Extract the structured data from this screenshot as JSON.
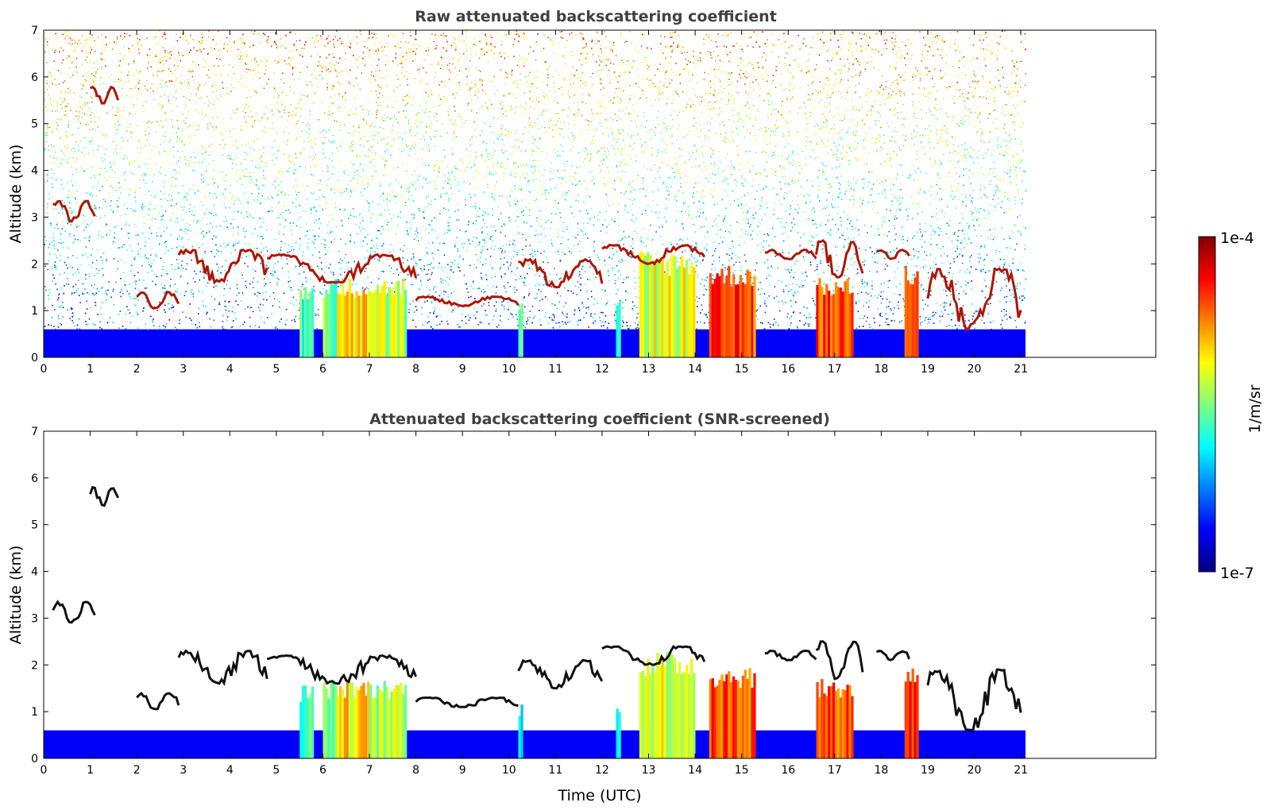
{
  "chart_data": [
    {
      "type": "heatmap",
      "title": "Raw attenuated backscattering coefficient",
      "ylabel": "Altitude (km)",
      "xlabel": "",
      "xlim": [
        0,
        23.9
      ],
      "ylim": [
        0,
        7
      ],
      "xticks": [
        "0",
        "1",
        "2",
        "3",
        "4",
        "5",
        "6",
        "7",
        "8",
        "9",
        "10",
        "11",
        "12",
        "13",
        "14",
        "15",
        "16",
        "17",
        "18",
        "19",
        "20",
        "21"
      ],
      "yticks": [
        "0",
        "1",
        "2",
        "3",
        "4",
        "5",
        "6",
        "7"
      ],
      "data_end_time": 21.1,
      "noise": true,
      "cloud_layers": [
        {
          "x": [
            0.2,
            1.1
          ],
          "y": [
            2.9,
            3.35
          ]
        },
        {
          "x": [
            1.0,
            1.6
          ],
          "y": [
            5.4,
            5.8
          ]
        },
        {
          "x": [
            2.0,
            2.9
          ],
          "y": [
            1.05,
            1.4
          ]
        },
        {
          "x": [
            2.9,
            4.8
          ],
          "y": [
            1.6,
            2.3
          ]
        },
        {
          "x": [
            4.8,
            8.0
          ],
          "y": [
            1.6,
            2.2
          ]
        },
        {
          "x": [
            8.0,
            10.2
          ],
          "y": [
            1.1,
            1.3
          ]
        },
        {
          "x": [
            10.2,
            12.0
          ],
          "y": [
            1.5,
            2.1
          ]
        },
        {
          "x": [
            12.0,
            14.2
          ],
          "y": [
            2.0,
            2.4
          ]
        },
        {
          "x": [
            15.5,
            16.6
          ],
          "y": [
            2.1,
            2.3
          ]
        },
        {
          "x": [
            16.6,
            17.6
          ],
          "y": [
            1.7,
            2.5
          ]
        },
        {
          "x": [
            17.9,
            18.6
          ],
          "y": [
            2.1,
            2.3
          ]
        },
        {
          "x": [
            19.0,
            21.0
          ],
          "y": [
            0.6,
            1.9
          ]
        }
      ],
      "precip_shafts": [
        {
          "x": [
            5.5,
            5.8
          ],
          "top": 1.6,
          "level": 0.45
        },
        {
          "x": [
            6.0,
            6.3
          ],
          "top": 1.7,
          "level": 0.5
        },
        {
          "x": [
            6.3,
            7.0
          ],
          "top": 1.7,
          "level": 0.65
        },
        {
          "x": [
            7.0,
            7.8
          ],
          "top": 1.7,
          "level": 0.55
        },
        {
          "x": [
            10.2,
            10.3
          ],
          "top": 1.2,
          "level": 0.4
        },
        {
          "x": [
            12.3,
            12.4
          ],
          "top": 1.3,
          "level": 0.4
        },
        {
          "x": [
            12.8,
            14.0
          ],
          "top": 2.3,
          "level": 0.6
        },
        {
          "x": [
            14.3,
            15.3
          ],
          "top": 2.0,
          "level": 0.8
        },
        {
          "x": [
            16.6,
            17.4
          ],
          "top": 1.7,
          "level": 0.8
        },
        {
          "x": [
            18.5,
            18.8
          ],
          "top": 2.0,
          "level": 0.85
        }
      ],
      "boundary_layer_top": 0.6
    },
    {
      "type": "heatmap",
      "title": "Attenuated backscattering coefficient (SNR-screened)",
      "ylabel": "Altitude (km)",
      "xlabel": "Time (UTC)",
      "xlim": [
        0,
        23.9
      ],
      "ylim": [
        0,
        7
      ],
      "xticks": [
        "0",
        "1",
        "2",
        "3",
        "4",
        "5",
        "6",
        "7",
        "8",
        "9",
        "10",
        "11",
        "12",
        "13",
        "14",
        "15",
        "16",
        "17",
        "18",
        "19",
        "20",
        "21"
      ],
      "yticks": [
        "0",
        "1",
        "2",
        "3",
        "4",
        "5",
        "6",
        "7"
      ],
      "data_end_time": 21.1,
      "noise": false,
      "cloud_layers": [
        {
          "x": [
            0.2,
            1.1
          ],
          "y": [
            2.9,
            3.35
          ]
        },
        {
          "x": [
            1.0,
            1.6
          ],
          "y": [
            5.4,
            5.8
          ]
        },
        {
          "x": [
            2.0,
            2.9
          ],
          "y": [
            1.05,
            1.4
          ]
        },
        {
          "x": [
            2.9,
            4.8
          ],
          "y": [
            1.6,
            2.3
          ]
        },
        {
          "x": [
            4.8,
            8.0
          ],
          "y": [
            1.6,
            2.2
          ]
        },
        {
          "x": [
            8.0,
            10.2
          ],
          "y": [
            1.1,
            1.3
          ]
        },
        {
          "x": [
            10.2,
            12.0
          ],
          "y": [
            1.5,
            2.1
          ]
        },
        {
          "x": [
            12.0,
            14.2
          ],
          "y": [
            2.0,
            2.4
          ]
        },
        {
          "x": [
            15.5,
            16.6
          ],
          "y": [
            2.1,
            2.3
          ]
        },
        {
          "x": [
            16.6,
            17.6
          ],
          "y": [
            1.7,
            2.5
          ]
        },
        {
          "x": [
            17.9,
            18.6
          ],
          "y": [
            2.1,
            2.3
          ]
        },
        {
          "x": [
            19.0,
            21.0
          ],
          "y": [
            0.6,
            1.9
          ]
        }
      ],
      "precip_shafts": [
        {
          "x": [
            5.5,
            5.8
          ],
          "top": 1.6,
          "level": 0.45
        },
        {
          "x": [
            6.0,
            6.3
          ],
          "top": 1.7,
          "level": 0.5
        },
        {
          "x": [
            6.3,
            7.0
          ],
          "top": 1.7,
          "level": 0.65
        },
        {
          "x": [
            7.0,
            7.8
          ],
          "top": 1.7,
          "level": 0.55
        },
        {
          "x": [
            10.2,
            10.3
          ],
          "top": 1.2,
          "level": 0.4
        },
        {
          "x": [
            12.3,
            12.4
          ],
          "top": 1.3,
          "level": 0.4
        },
        {
          "x": [
            12.8,
            14.0
          ],
          "top": 2.3,
          "level": 0.6
        },
        {
          "x": [
            14.3,
            15.3
          ],
          "top": 2.0,
          "level": 0.8
        },
        {
          "x": [
            16.6,
            17.4
          ],
          "top": 1.7,
          "level": 0.8
        },
        {
          "x": [
            18.5,
            18.8
          ],
          "top": 2.0,
          "level": 0.85
        }
      ],
      "boundary_layer_top": 0.6
    }
  ],
  "colorbar": {
    "label": "1/m/sr",
    "max_label": "1e-4",
    "min_label": "1e-7",
    "colormap": [
      "#00007f",
      "#0000ff",
      "#007fff",
      "#00ffff",
      "#7fff7f",
      "#ffff00",
      "#ff7f00",
      "#ff0000",
      "#7f0000"
    ]
  }
}
